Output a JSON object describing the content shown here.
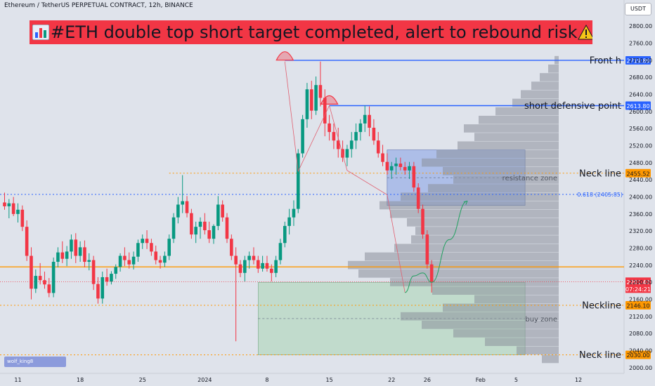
{
  "header": {
    "symbol": "Ethereum / TetherUS PERPETUAL CONTRACT, 12h, BINANCE",
    "currency_button": "USDT"
  },
  "banner": {
    "icon": "bar-chart-icon",
    "text": "#ETH double top short target completed,  alert to rebound risk",
    "warning_icon": "warning-icon",
    "background": "#f23645"
  },
  "watermark": "wolf_king8",
  "colors": {
    "up": "#089981",
    "down": "#f23645",
    "blue_line": "#2962ff",
    "orange": "#ff9800",
    "resistance_zone": "#8ca5e6",
    "buy_zone": "#a8d5b2"
  },
  "chart_data": {
    "type": "candlestick",
    "y_axis": {
      "ticks": [
        2000,
        2040,
        2080,
        2120,
        2160,
        2200,
        2240,
        2280,
        2320,
        2360,
        2400,
        2440,
        2480,
        2520,
        2560,
        2600,
        2640,
        2680,
        2720,
        2760,
        2800
      ],
      "range": [
        1990,
        2825
      ]
    },
    "x_axis": {
      "ticks": [
        {
          "label": "11",
          "at": 3.0
        },
        {
          "label": "18",
          "at": 17.0
        },
        {
          "label": "25",
          "at": 31.0
        },
        {
          "label": "2024",
          "at": 45.0
        },
        {
          "label": "8",
          "at": 59.0
        },
        {
          "label": "15",
          "at": 73.0
        },
        {
          "label": "22",
          "at": 87.0
        },
        {
          "label": "26",
          "at": 95.0
        },
        {
          "label": "Feb",
          "at": 107.0
        },
        {
          "label": "5",
          "at": 115.0
        },
        {
          "label": "12",
          "at": 129.0
        }
      ]
    },
    "ohlc": [
      [
        2387,
        2410,
        2370,
        2378
      ],
      [
        2378,
        2395,
        2350,
        2385
      ],
      [
        2385,
        2400,
        2355,
        2360
      ],
      [
        2360,
        2385,
        2340,
        2370
      ],
      [
        2370,
        2380,
        2320,
        2330
      ],
      [
        2330,
        2345,
        2250,
        2262
      ],
      [
        2262,
        2282,
        2160,
        2185
      ],
      [
        2185,
        2230,
        2175,
        2215
      ],
      [
        2215,
        2245,
        2195,
        2205
      ],
      [
        2205,
        2225,
        2185,
        2195
      ],
      [
        2195,
        2210,
        2165,
        2175
      ],
      [
        2175,
        2258,
        2165,
        2248
      ],
      [
        2248,
        2282,
        2235,
        2270
      ],
      [
        2270,
        2296,
        2245,
        2255
      ],
      [
        2255,
        2285,
        2238,
        2272
      ],
      [
        2272,
        2312,
        2255,
        2300
      ],
      [
        2300,
        2315,
        2245,
        2262
      ],
      [
        2262,
        2296,
        2248,
        2282
      ],
      [
        2282,
        2298,
        2235,
        2248
      ],
      [
        2248,
        2268,
        2228,
        2252
      ],
      [
        2252,
        2262,
        2182,
        2196
      ],
      [
        2196,
        2212,
        2150,
        2162
      ],
      [
        2162,
        2225,
        2150,
        2212
      ],
      [
        2212,
        2232,
        2192,
        2202
      ],
      [
        2202,
        2226,
        2195,
        2220
      ],
      [
        2220,
        2242,
        2208,
        2236
      ],
      [
        2236,
        2268,
        2225,
        2262
      ],
      [
        2262,
        2282,
        2238,
        2252
      ],
      [
        2252,
        2270,
        2232,
        2242
      ],
      [
        2242,
        2272,
        2230,
        2260
      ],
      [
        2260,
        2300,
        2248,
        2292
      ],
      [
        2292,
        2312,
        2278,
        2302
      ],
      [
        2302,
        2322,
        2278,
        2292
      ],
      [
        2292,
        2302,
        2262,
        2272
      ],
      [
        2272,
        2286,
        2242,
        2252
      ],
      [
        2252,
        2262,
        2232,
        2246
      ],
      [
        2246,
        2272,
        2236,
        2262
      ],
      [
        2262,
        2312,
        2252,
        2302
      ],
      [
        2302,
        2362,
        2292,
        2352
      ],
      [
        2352,
        2400,
        2338,
        2382
      ],
      [
        2382,
        2451,
        2362,
        2390
      ],
      [
        2390,
        2402,
        2352,
        2362
      ],
      [
        2362,
        2372,
        2302,
        2312
      ],
      [
        2312,
        2342,
        2292,
        2330
      ],
      [
        2330,
        2352,
        2302,
        2342
      ],
      [
        2342,
        2362,
        2312,
        2322
      ],
      [
        2322,
        2342,
        2292,
        2302
      ],
      [
        2302,
        2336,
        2290,
        2332
      ],
      [
        2332,
        2402,
        2322,
        2382
      ],
      [
        2382,
        2392,
        2342,
        2352
      ],
      [
        2352,
        2362,
        2292,
        2302
      ],
      [
        2302,
        2312,
        2252,
        2262
      ],
      [
        2262,
        2282,
        2062,
        2242
      ],
      [
        2242,
        2252,
        2212,
        2222
      ],
      [
        2222,
        2262,
        2202,
        2252
      ],
      [
        2252,
        2272,
        2232,
        2262
      ],
      [
        2262,
        2282,
        2242,
        2252
      ],
      [
        2252,
        2262,
        2222,
        2232
      ],
      [
        2232,
        2262,
        2225,
        2245
      ],
      [
        2245,
        2262,
        2225,
        2232
      ],
      [
        2232,
        2242,
        2202,
        2222
      ],
      [
        2222,
        2262,
        2212,
        2252
      ],
      [
        2252,
        2302,
        2242,
        2292
      ],
      [
        2292,
        2342,
        2282,
        2332
      ],
      [
        2332,
        2372,
        2312,
        2352
      ],
      [
        2352,
        2392,
        2332,
        2372
      ],
      [
        2372,
        2512,
        2362,
        2502
      ],
      [
        2502,
        2592,
        2492,
        2582
      ],
      [
        2582,
        2667,
        2562,
        2652
      ],
      [
        2652,
        2672,
        2582,
        2602
      ],
      [
        2602,
        2682,
        2592,
        2662
      ],
      [
        2662,
        2717,
        2612,
        2632
      ],
      [
        2632,
        2652,
        2542,
        2572
      ],
      [
        2572,
        2592,
        2532,
        2552
      ],
      [
        2552,
        2572,
        2512,
        2532
      ],
      [
        2532,
        2562,
        2492,
        2512
      ],
      [
        2512,
        2532,
        2482,
        2492
      ],
      [
        2492,
        2522,
        2472,
        2512
      ],
      [
        2512,
        2552,
        2492,
        2532
      ],
      [
        2532,
        2572,
        2512,
        2552
      ],
      [
        2552,
        2582,
        2532,
        2572
      ],
      [
        2572,
        2614,
        2552,
        2592
      ],
      [
        2592,
        2612,
        2542,
        2562
      ],
      [
        2562,
        2582,
        2522,
        2532
      ],
      [
        2532,
        2552,
        2492,
        2502
      ],
      [
        2502,
        2522,
        2472,
        2482
      ],
      [
        2482,
        2502,
        2452,
        2462
      ],
      [
        2462,
        2482,
        2442,
        2472
      ],
      [
        2472,
        2492,
        2452,
        2478
      ],
      [
        2478,
        2492,
        2462,
        2470
      ],
      [
        2470,
        2482,
        2452,
        2462
      ],
      [
        2462,
        2482,
        2442,
        2472
      ],
      [
        2472,
        2482,
        2412,
        2422
      ],
      [
        2422,
        2432,
        2362,
        2372
      ],
      [
        2372,
        2382,
        2302,
        2312
      ],
      [
        2312,
        2322,
        2232,
        2242
      ],
      [
        2242,
        2252,
        2176,
        2201
      ]
    ],
    "horizontal_levels": [
      {
        "label": "Front h",
        "price": 2719.89,
        "badge": "2719.89",
        "color": "#2962ff",
        "style": "solid",
        "x_start": 63
      },
      {
        "label": "short defensive point",
        "price": 2613.8,
        "badge": "2613.80",
        "color": "#2962ff",
        "style": "solid",
        "x_start": 73
      },
      {
        "label": "Neck line",
        "price": 2455.52,
        "badge": "2455.52",
        "color": "#ff9800",
        "style": "dotted",
        "x_start": 37
      },
      {
        "label": "0.618 (2405.85)",
        "price": 2405.85,
        "color": "#2962ff",
        "style": "dotted",
        "x_start": 0
      },
      {
        "label": "",
        "price": 2236,
        "color": "#ff9800",
        "style": "solid",
        "x_start": 0
      },
      {
        "label": "Neckline",
        "price": 2146.1,
        "badge": "2146.10",
        "color": "#ff9800",
        "style": "dotted",
        "x_start": 0
      },
      {
        "label": "Neck line",
        "price": 2030.0,
        "badge": "2030.00",
        "color": "#ff9800",
        "style": "dotted",
        "x_start": 0
      }
    ],
    "current_price": {
      "price": 2201.42,
      "badge": "2201.42",
      "countdown": "07:24:21",
      "color": "#f23645"
    },
    "zones": [
      {
        "label": "resistance zone",
        "top": 2510,
        "bottom": 2380,
        "x_start": 86,
        "x_end": 117
      },
      {
        "label": "buy zone",
        "top": 2200,
        "bottom": 2030,
        "x_start": 57,
        "x_end": 117
      }
    ],
    "volume_profile": [
      {
        "price": 2720,
        "vol": 0.02
      },
      {
        "price": 2700,
        "vol": 0.05
      },
      {
        "price": 2680,
        "vol": 0.09
      },
      {
        "price": 2660,
        "vol": 0.13
      },
      {
        "price": 2640,
        "vol": 0.18
      },
      {
        "price": 2620,
        "vol": 0.22
      },
      {
        "price": 2600,
        "vol": 0.3
      },
      {
        "price": 2580,
        "vol": 0.38
      },
      {
        "price": 2560,
        "vol": 0.45
      },
      {
        "price": 2540,
        "vol": 0.4
      },
      {
        "price": 2520,
        "vol": 0.48
      },
      {
        "price": 2500,
        "vol": 0.58
      },
      {
        "price": 2480,
        "vol": 0.65
      },
      {
        "price": 2460,
        "vol": 0.55
      },
      {
        "price": 2440,
        "vol": 0.5
      },
      {
        "price": 2420,
        "vol": 0.62
      },
      {
        "price": 2400,
        "vol": 0.75
      },
      {
        "price": 2380,
        "vol": 0.85
      },
      {
        "price": 2360,
        "vol": 0.8
      },
      {
        "price": 2340,
        "vol": 0.72
      },
      {
        "price": 2320,
        "vol": 0.68
      },
      {
        "price": 2300,
        "vol": 0.7
      },
      {
        "price": 2280,
        "vol": 0.78
      },
      {
        "price": 2260,
        "vol": 0.92
      },
      {
        "price": 2240,
        "vol": 1.0
      },
      {
        "price": 2220,
        "vol": 0.95
      },
      {
        "price": 2200,
        "vol": 0.8
      },
      {
        "price": 2180,
        "vol": 0.6
      },
      {
        "price": 2160,
        "vol": 0.4
      },
      {
        "price": 2140,
        "vol": 0.55
      },
      {
        "price": 2120,
        "vol": 0.75
      },
      {
        "price": 2100,
        "vol": 0.65
      },
      {
        "price": 2080,
        "vol": 0.5
      },
      {
        "price": 2060,
        "vol": 0.35
      },
      {
        "price": 2040,
        "vol": 0.2
      },
      {
        "price": 2020,
        "vol": 0.08
      }
    ],
    "double_top_markers": [
      {
        "index": 63,
        "price": 2717
      },
      {
        "index": 73,
        "price": 2614
      }
    ],
    "pattern_path": [
      [
        63,
        2717
      ],
      [
        66,
        2460
      ],
      [
        73,
        2614
      ],
      [
        77,
        2462
      ],
      [
        86,
        2405
      ],
      [
        90,
        2176
      ]
    ],
    "projection_path": [
      [
        90,
        2176
      ],
      [
        92,
        2215
      ],
      [
        94,
        2222
      ],
      [
        96,
        2200
      ],
      [
        100,
        2300
      ],
      [
        104,
        2390
      ]
    ]
  }
}
